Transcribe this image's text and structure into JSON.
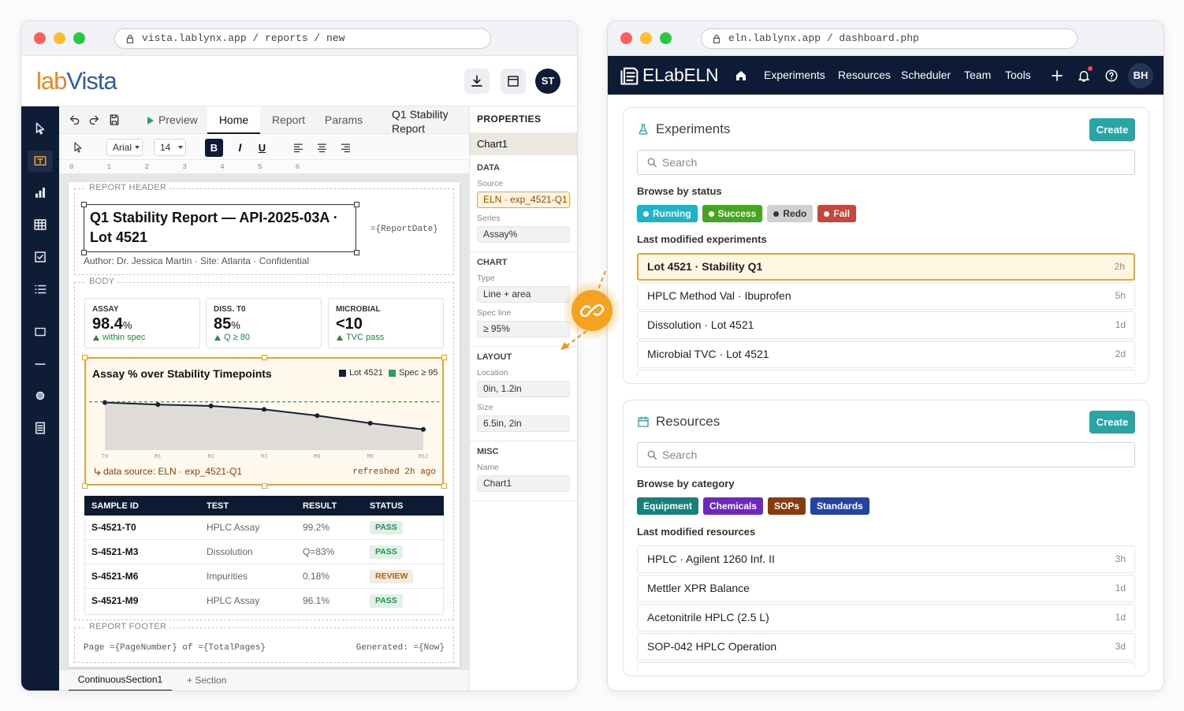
{
  "left": {
    "url": "vista.lablynx.app / reports / new",
    "logo": [
      "lab",
      "Vista"
    ],
    "avatar": "ST",
    "tabs": {
      "preview": "Preview",
      "items": [
        "Home",
        "Report",
        "Params",
        "Q1 Stability Report"
      ],
      "active": 0
    },
    "format": {
      "font": "Arial",
      "size": 14,
      "bold": "B",
      "italic": "I",
      "underline": "U"
    },
    "ruler": [
      0,
      1,
      2,
      3,
      4,
      5,
      6
    ],
    "report": {
      "header_label": "REPORT HEADER",
      "title": "Q1 Stability Report — API-2025-03A · Lot 4521",
      "date_field": "={ReportDate}",
      "meta": "Author: Dr. Jessica Martin · Site: Atlanta · Confidential",
      "body_label": "BODY",
      "kpis": [
        {
          "label": "ASSAY",
          "value": 98.4,
          "unit": "%",
          "note": "within spec"
        },
        {
          "label": "DISS. T0",
          "value": 85,
          "unit": "%",
          "note": "Q ≥ 80"
        },
        {
          "label": "MICROBIAL",
          "value": "<10",
          "note": "TVC pass"
        }
      ],
      "chart": {
        "type": "line",
        "title": "Assay % over Stability Timepoints",
        "categories": [
          "T0",
          "M1",
          "M2",
          "M3",
          "M6",
          "M9",
          "M12"
        ],
        "series": [
          {
            "name": "Lot 4521",
            "color": "#16203b",
            "values": [
              94.9,
              94.6,
              94.4,
              93.9,
              93.0,
              91.9,
              91.0
            ]
          }
        ],
        "spec": {
          "name": "Spec ≥ 95",
          "value": 95,
          "color": "#22a35a"
        },
        "ylim": [
          88,
          96
        ],
        "area_color": "#dfdcd8",
        "source": "data source: ELN · exp_4521-Q1",
        "refreshed": "refreshed 2h ago"
      },
      "table": {
        "columns": [
          "SAMPLE ID",
          "TEST",
          "RESULT",
          "STATUS"
        ],
        "rows": [
          {
            "id": "S-4521-T0",
            "test": "HPLC Assay",
            "result": "99.2%",
            "status": "PASS",
            "status_color": "#1d9448"
          },
          {
            "id": "S-4521-M3",
            "test": "Dissolution",
            "result": "Q=83%",
            "status": "PASS",
            "status_color": "#1d9448"
          },
          {
            "id": "S-4521-M6",
            "test": "Impurities",
            "result": "0.18%",
            "status": "REVIEW",
            "status_color": "#b3610f"
          },
          {
            "id": "S-4521-M9",
            "test": "HPLC Assay",
            "result": "96.1%",
            "status": "PASS",
            "status_color": "#1d9448"
          }
        ]
      },
      "footer_label": "REPORT FOOTER",
      "footer_left": "Page ={PageNumber} of ={TotalPages}",
      "footer_right": "Generated: ={Now}"
    },
    "sections": [
      "ContinuousSection1",
      "+ Section"
    ],
    "properties": {
      "title": "PROPERTIES",
      "selected": "Chart1",
      "groups": [
        {
          "name": "DATA",
          "fields": [
            {
              "label": "Source",
              "value": "ELN · exp_4521-Q1",
              "highlighted": true
            },
            {
              "label": "Series",
              "value": "Assay%"
            }
          ]
        },
        {
          "name": "CHART",
          "fields": [
            {
              "label": "Type",
              "value": "Line + area"
            },
            {
              "label": "Spec line",
              "value": "≥ 95%"
            }
          ]
        },
        {
          "name": "LAYOUT",
          "fields": [
            {
              "label": "Location",
              "value": "0in, 1.2in"
            },
            {
              "label": "Size",
              "value": "6.5in, 2in"
            }
          ]
        },
        {
          "name": "MISC",
          "fields": [
            {
              "label": "Name",
              "value": "Chart1"
            }
          ]
        }
      ]
    }
  },
  "right": {
    "url": "eln.lablynx.app / dashboard.php",
    "brand": "ELabELN",
    "nav": [
      "Experiments",
      "Resources",
      "Scheduler",
      "Team",
      "Tools"
    ],
    "avatar": "BH",
    "panels": [
      {
        "title": "Experiments",
        "create": "Create",
        "search": "Search",
        "browse": "Browse by status",
        "chip_dots": true,
        "chips": [
          {
            "text": "Running",
            "color": "#1eb3c7"
          },
          {
            "text": "Success",
            "color": "#44a520"
          },
          {
            "text": "Redo",
            "color": "#cfd0d2",
            "text_color": "#333333"
          },
          {
            "text": "Fail",
            "color": "#c7463b"
          }
        ],
        "recent_title": "Last modified experiments",
        "items": [
          {
            "name": "Lot 4521 · Stability Q1",
            "age": "2h"
          },
          {
            "name": "HPLC Method Val · Ibuprofen",
            "age": "5h"
          },
          {
            "name": "Dissolution · Lot 4521",
            "age": "1d"
          },
          {
            "name": "Microbial TVC · Lot 4521",
            "age": "2d"
          }
        ],
        "highlighted": 0
      },
      {
        "title": "Resources",
        "create": "Create",
        "search": "Search",
        "browse": "Browse by category",
        "chip_dots": false,
        "chips": [
          {
            "text": "Equipment",
            "color": "#17807d"
          },
          {
            "text": "Chemicals",
            "color": "#6d28c2"
          },
          {
            "text": "SOPs",
            "color": "#8a3a0e"
          },
          {
            "text": "Standards",
            "color": "#2543a6"
          }
        ],
        "recent_title": "Last modified resources",
        "items": [
          {
            "name": "HPLC · Agilent 1260 Inf. II",
            "age": "3h"
          },
          {
            "name": "Mettler XPR Balance",
            "age": "1d"
          },
          {
            "name": "Acetonitrile HPLC (2.5 L)",
            "age": "1d"
          },
          {
            "name": "SOP-042 HPLC Operation",
            "age": "3d"
          }
        ]
      }
    ]
  }
}
